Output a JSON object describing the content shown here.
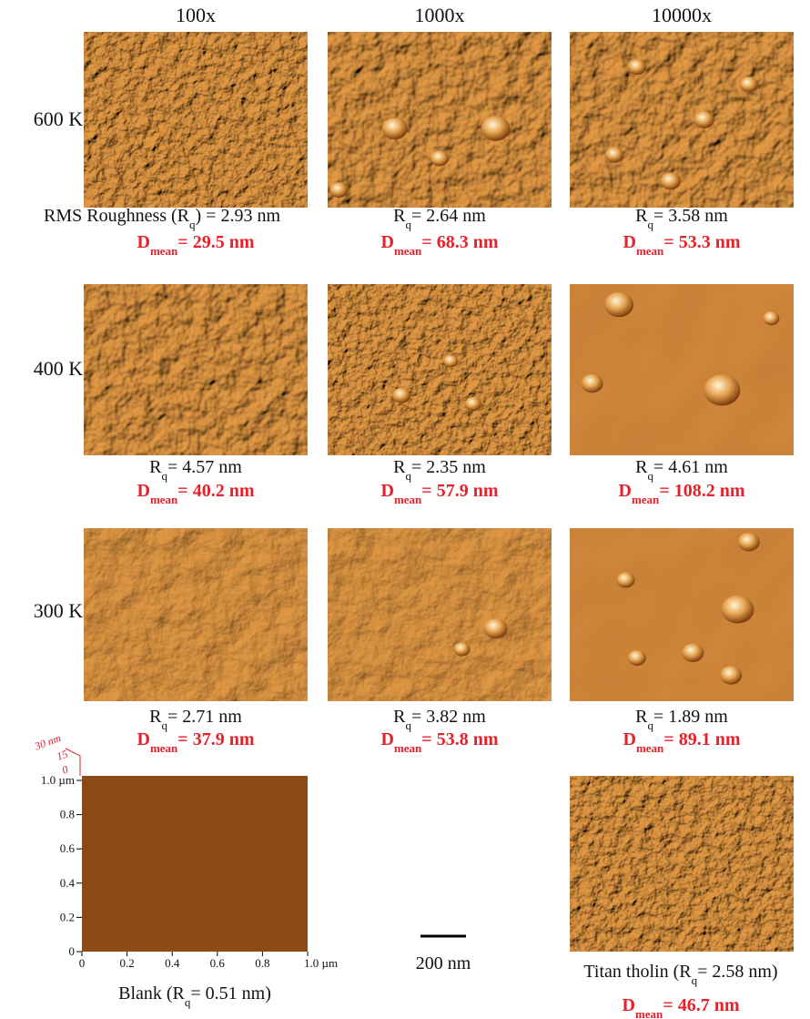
{
  "columns": [
    "100x",
    "1000x",
    "10000x"
  ],
  "rows": [
    {
      "label": "600 K",
      "cells": [
        {
          "rq": {
            "pre": "RMS Roughness (R",
            "sub": "q",
            "post": ") = 2.93 nm"
          },
          "dmean": {
            "pre": "D",
            "sub": "mean",
            "post": "= 29.5 nm"
          }
        },
        {
          "rq": {
            "pre": "R",
            "sub": "q",
            "post": "= 2.64 nm"
          },
          "dmean": {
            "pre": "D",
            "sub": "mean",
            "post": "= 68.3 nm"
          }
        },
        {
          "rq": {
            "pre": "R",
            "sub": "q",
            "post": "= 3.58 nm"
          },
          "dmean": {
            "pre": "D",
            "sub": "mean",
            "post": "= 53.3 nm"
          }
        }
      ]
    },
    {
      "label": "400 K",
      "cells": [
        {
          "rq": {
            "pre": "R",
            "sub": "q",
            "post": "= 4.57 nm"
          },
          "dmean": {
            "pre": "D",
            "sub": "mean",
            "post": "= 40.2 nm"
          }
        },
        {
          "rq": {
            "pre": "R",
            "sub": "q",
            "post": "= 2.35 nm"
          },
          "dmean": {
            "pre": "D",
            "sub": "mean",
            "post": "= 57.9 nm"
          }
        },
        {
          "rq": {
            "pre": "R",
            "sub": "q",
            "post": "= 4.61 nm"
          },
          "dmean": {
            "pre": "D",
            "sub": "mean",
            "post": "= 108.2 nm"
          }
        }
      ]
    },
    {
      "label": "300 K",
      "cells": [
        {
          "rq": {
            "pre": "R",
            "sub": "q",
            "post": "= 2.71 nm"
          },
          "dmean": {
            "pre": "D",
            "sub": "mean",
            "post": "= 37.9 nm"
          }
        },
        {
          "rq": {
            "pre": "R",
            "sub": "q",
            "post": "= 3.82 nm"
          },
          "dmean": {
            "pre": "D",
            "sub": "mean",
            "post": "= 53.8 nm"
          }
        },
        {
          "rq": {
            "pre": "R",
            "sub": "q",
            "post": "= 1.89 nm"
          },
          "dmean": {
            "pre": "D",
            "sub": "mean",
            "post": "= 89.1 nm"
          }
        }
      ]
    }
  ],
  "blank": {
    "caption": {
      "pre": "Blank (R",
      "sub": "q",
      "post": "= 0.51 nm)"
    },
    "y_ticks": [
      "0",
      "0.2",
      "0.4",
      "0.6",
      "0.8",
      "1.0 µm"
    ],
    "x_ticks": [
      "0",
      "0.2",
      "0.4",
      "0.6",
      "0.8",
      "1.0 µm"
    ],
    "z_ticks": [
      "30 nm",
      "15",
      "0"
    ]
  },
  "scale_bar": "200 nm",
  "tholin": {
    "caption": {
      "pre": "Titan tholin (R",
      "sub": "q",
      "post": "= 2.58 nm)"
    },
    "dmean": {
      "pre": "D",
      "sub": "mean",
      "post": "= 46.7 nm"
    }
  }
}
